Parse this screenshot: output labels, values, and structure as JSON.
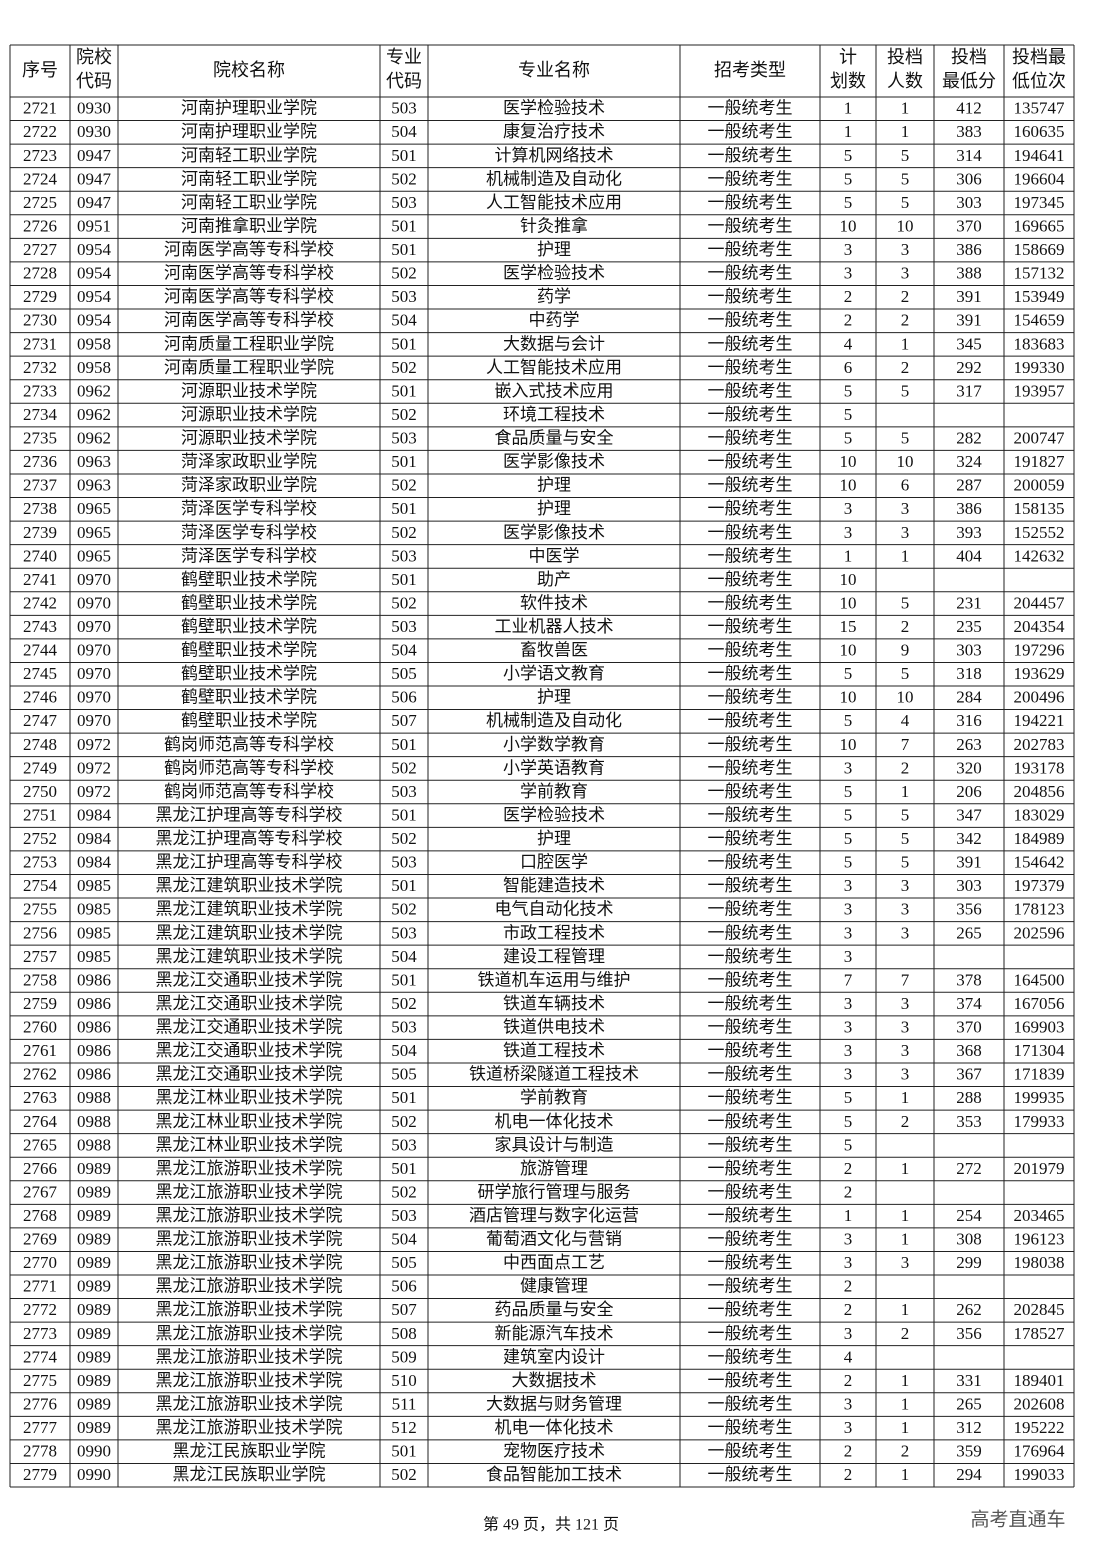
{
  "table": {
    "header": [
      [
        "序号"
      ],
      [
        "院校",
        "代码"
      ],
      [
        "院校名称"
      ],
      [
        "专业",
        "代码"
      ],
      [
        "专业名称"
      ],
      [
        "招考类型"
      ],
      [
        "计",
        "划数"
      ],
      [
        "投档",
        "人数"
      ],
      [
        "投档",
        "最低分"
      ],
      [
        "投档最",
        "低位次"
      ]
    ],
    "rows": [
      [
        "2721",
        "0930",
        "河南护理职业学院",
        "503",
        "医学检验技术",
        "一般统考生",
        "1",
        "1",
        "412",
        "135747"
      ],
      [
        "2722",
        "0930",
        "河南护理职业学院",
        "504",
        "康复治疗技术",
        "一般统考生",
        "1",
        "1",
        "383",
        "160635"
      ],
      [
        "2723",
        "0947",
        "河南轻工职业学院",
        "501",
        "计算机网络技术",
        "一般统考生",
        "5",
        "5",
        "314",
        "194641"
      ],
      [
        "2724",
        "0947",
        "河南轻工职业学院",
        "502",
        "机械制造及自动化",
        "一般统考生",
        "5",
        "5",
        "306",
        "196604"
      ],
      [
        "2725",
        "0947",
        "河南轻工职业学院",
        "503",
        "人工智能技术应用",
        "一般统考生",
        "5",
        "5",
        "303",
        "197345"
      ],
      [
        "2726",
        "0951",
        "河南推拿职业学院",
        "501",
        "针灸推拿",
        "一般统考生",
        "10",
        "10",
        "370",
        "169665"
      ],
      [
        "2727",
        "0954",
        "河南医学高等专科学校",
        "501",
        "护理",
        "一般统考生",
        "3",
        "3",
        "386",
        "158669"
      ],
      [
        "2728",
        "0954",
        "河南医学高等专科学校",
        "502",
        "医学检验技术",
        "一般统考生",
        "3",
        "3",
        "388",
        "157132"
      ],
      [
        "2729",
        "0954",
        "河南医学高等专科学校",
        "503",
        "药学",
        "一般统考生",
        "2",
        "2",
        "391",
        "153949"
      ],
      [
        "2730",
        "0954",
        "河南医学高等专科学校",
        "504",
        "中药学",
        "一般统考生",
        "2",
        "2",
        "391",
        "154659"
      ],
      [
        "2731",
        "0958",
        "河南质量工程职业学院",
        "501",
        "大数据与会计",
        "一般统考生",
        "4",
        "1",
        "345",
        "183683"
      ],
      [
        "2732",
        "0958",
        "河南质量工程职业学院",
        "502",
        "人工智能技术应用",
        "一般统考生",
        "6",
        "2",
        "292",
        "199330"
      ],
      [
        "2733",
        "0962",
        "河源职业技术学院",
        "501",
        "嵌入式技术应用",
        "一般统考生",
        "5",
        "5",
        "317",
        "193957"
      ],
      [
        "2734",
        "0962",
        "河源职业技术学院",
        "502",
        "环境工程技术",
        "一般统考生",
        "5",
        null,
        null,
        null
      ],
      [
        "2735",
        "0962",
        "河源职业技术学院",
        "503",
        "食品质量与安全",
        "一般统考生",
        "5",
        "5",
        "282",
        "200747"
      ],
      [
        "2736",
        "0963",
        "菏泽家政职业学院",
        "501",
        "医学影像技术",
        "一般统考生",
        "10",
        "10",
        "324",
        "191827"
      ],
      [
        "2737",
        "0963",
        "菏泽家政职业学院",
        "502",
        "护理",
        "一般统考生",
        "10",
        "6",
        "287",
        "200059"
      ],
      [
        "2738",
        "0965",
        "菏泽医学专科学校",
        "501",
        "护理",
        "一般统考生",
        "3",
        "3",
        "386",
        "158135"
      ],
      [
        "2739",
        "0965",
        "菏泽医学专科学校",
        "502",
        "医学影像技术",
        "一般统考生",
        "3",
        "3",
        "393",
        "152552"
      ],
      [
        "2740",
        "0965",
        "菏泽医学专科学校",
        "503",
        "中医学",
        "一般统考生",
        "1",
        "1",
        "404",
        "142632"
      ],
      [
        "2741",
        "0970",
        "鹤壁职业技术学院",
        "501",
        "助产",
        "一般统考生",
        "10",
        null,
        null,
        null
      ],
      [
        "2742",
        "0970",
        "鹤壁职业技术学院",
        "502",
        "软件技术",
        "一般统考生",
        "10",
        "5",
        "231",
        "204457"
      ],
      [
        "2743",
        "0970",
        "鹤壁职业技术学院",
        "503",
        "工业机器人技术",
        "一般统考生",
        "15",
        "2",
        "235",
        "204354"
      ],
      [
        "2744",
        "0970",
        "鹤壁职业技术学院",
        "504",
        "畜牧兽医",
        "一般统考生",
        "10",
        "9",
        "303",
        "197296"
      ],
      [
        "2745",
        "0970",
        "鹤壁职业技术学院",
        "505",
        "小学语文教育",
        "一般统考生",
        "5",
        "5",
        "318",
        "193629"
      ],
      [
        "2746",
        "0970",
        "鹤壁职业技术学院",
        "506",
        "护理",
        "一般统考生",
        "10",
        "10",
        "284",
        "200496"
      ],
      [
        "2747",
        "0970",
        "鹤壁职业技术学院",
        "507",
        "机械制造及自动化",
        "一般统考生",
        "5",
        "4",
        "316",
        "194221"
      ],
      [
        "2748",
        "0972",
        "鹤岗师范高等专科学校",
        "501",
        "小学数学教育",
        "一般统考生",
        "10",
        "7",
        "263",
        "202783"
      ],
      [
        "2749",
        "0972",
        "鹤岗师范高等专科学校",
        "502",
        "小学英语教育",
        "一般统考生",
        "3",
        "2",
        "320",
        "193178"
      ],
      [
        "2750",
        "0972",
        "鹤岗师范高等专科学校",
        "503",
        "学前教育",
        "一般统考生",
        "5",
        "1",
        "206",
        "204856"
      ],
      [
        "2751",
        "0984",
        "黑龙江护理高等专科学校",
        "501",
        "医学检验技术",
        "一般统考生",
        "5",
        "5",
        "347",
        "183029"
      ],
      [
        "2752",
        "0984",
        "黑龙江护理高等专科学校",
        "502",
        "护理",
        "一般统考生",
        "5",
        "5",
        "342",
        "184989"
      ],
      [
        "2753",
        "0984",
        "黑龙江护理高等专科学校",
        "503",
        "口腔医学",
        "一般统考生",
        "5",
        "5",
        "391",
        "154642"
      ],
      [
        "2754",
        "0985",
        "黑龙江建筑职业技术学院",
        "501",
        "智能建造技术",
        "一般统考生",
        "3",
        "3",
        "303",
        "197379"
      ],
      [
        "2755",
        "0985",
        "黑龙江建筑职业技术学院",
        "502",
        "电气自动化技术",
        "一般统考生",
        "3",
        "3",
        "356",
        "178123"
      ],
      [
        "2756",
        "0985",
        "黑龙江建筑职业技术学院",
        "503",
        "市政工程技术",
        "一般统考生",
        "3",
        "3",
        "265",
        "202596"
      ],
      [
        "2757",
        "0985",
        "黑龙江建筑职业技术学院",
        "504",
        "建设工程管理",
        "一般统考生",
        "3",
        null,
        null,
        null
      ],
      [
        "2758",
        "0986",
        "黑龙江交通职业技术学院",
        "501",
        "铁道机车运用与维护",
        "一般统考生",
        "7",
        "7",
        "378",
        "164500"
      ],
      [
        "2759",
        "0986",
        "黑龙江交通职业技术学院",
        "502",
        "铁道车辆技术",
        "一般统考生",
        "3",
        "3",
        "374",
        "167056"
      ],
      [
        "2760",
        "0986",
        "黑龙江交通职业技术学院",
        "503",
        "铁道供电技术",
        "一般统考生",
        "3",
        "3",
        "370",
        "169903"
      ],
      [
        "2761",
        "0986",
        "黑龙江交通职业技术学院",
        "504",
        "铁道工程技术",
        "一般统考生",
        "3",
        "3",
        "368",
        "171304"
      ],
      [
        "2762",
        "0986",
        "黑龙江交通职业技术学院",
        "505",
        "铁道桥梁隧道工程技术",
        "一般统考生",
        "3",
        "3",
        "367",
        "171839"
      ],
      [
        "2763",
        "0988",
        "黑龙江林业职业技术学院",
        "501",
        "学前教育",
        "一般统考生",
        "5",
        "1",
        "288",
        "199935"
      ],
      [
        "2764",
        "0988",
        "黑龙江林业职业技术学院",
        "502",
        "机电一体化技术",
        "一般统考生",
        "5",
        "2",
        "353",
        "179933"
      ],
      [
        "2765",
        "0988",
        "黑龙江林业职业技术学院",
        "503",
        "家具设计与制造",
        "一般统考生",
        "5",
        null,
        null,
        null
      ],
      [
        "2766",
        "0989",
        "黑龙江旅游职业技术学院",
        "501",
        "旅游管理",
        "一般统考生",
        "2",
        "1",
        "272",
        "201979"
      ],
      [
        "2767",
        "0989",
        "黑龙江旅游职业技术学院",
        "502",
        "研学旅行管理与服务",
        "一般统考生",
        "2",
        null,
        null,
        null
      ],
      [
        "2768",
        "0989",
        "黑龙江旅游职业技术学院",
        "503",
        "酒店管理与数字化运营",
        "一般统考生",
        "1",
        "1",
        "254",
        "203465"
      ],
      [
        "2769",
        "0989",
        "黑龙江旅游职业技术学院",
        "504",
        "葡萄酒文化与营销",
        "一般统考生",
        "3",
        "1",
        "308",
        "196123"
      ],
      [
        "2770",
        "0989",
        "黑龙江旅游职业技术学院",
        "505",
        "中西面点工艺",
        "一般统考生",
        "3",
        "3",
        "299",
        "198038"
      ],
      [
        "2771",
        "0989",
        "黑龙江旅游职业技术学院",
        "506",
        "健康管理",
        "一般统考生",
        "2",
        null,
        null,
        null
      ],
      [
        "2772",
        "0989",
        "黑龙江旅游职业技术学院",
        "507",
        "药品质量与安全",
        "一般统考生",
        "2",
        "1",
        "262",
        "202845"
      ],
      [
        "2773",
        "0989",
        "黑龙江旅游职业技术学院",
        "508",
        "新能源汽车技术",
        "一般统考生",
        "3",
        "2",
        "356",
        "178527"
      ],
      [
        "2774",
        "0989",
        "黑龙江旅游职业技术学院",
        "509",
        "建筑室内设计",
        "一般统考生",
        "4",
        null,
        null,
        null
      ],
      [
        "2775",
        "0989",
        "黑龙江旅游职业技术学院",
        "510",
        "大数据技术",
        "一般统考生",
        "2",
        "1",
        "331",
        "189401"
      ],
      [
        "2776",
        "0989",
        "黑龙江旅游职业技术学院",
        "511",
        "大数据与财务管理",
        "一般统考生",
        "3",
        "1",
        "265",
        "202608"
      ],
      [
        "2777",
        "0989",
        "黑龙江旅游职业技术学院",
        "512",
        "机电一体化技术",
        "一般统考生",
        "3",
        "1",
        "312",
        "195222"
      ],
      [
        "2778",
        "0990",
        "黑龙江民族职业学院",
        "501",
        "宠物医疗技术",
        "一般统考生",
        "2",
        "2",
        "359",
        "176964"
      ],
      [
        "2779",
        "0990",
        "黑龙江民族职业学院",
        "502",
        "食品智能加工技术",
        "一般统考生",
        "2",
        "1",
        "294",
        "199033"
      ]
    ]
  },
  "footer": {
    "page": "第 49 页，共 121 页",
    "brand": "高考直通车"
  }
}
